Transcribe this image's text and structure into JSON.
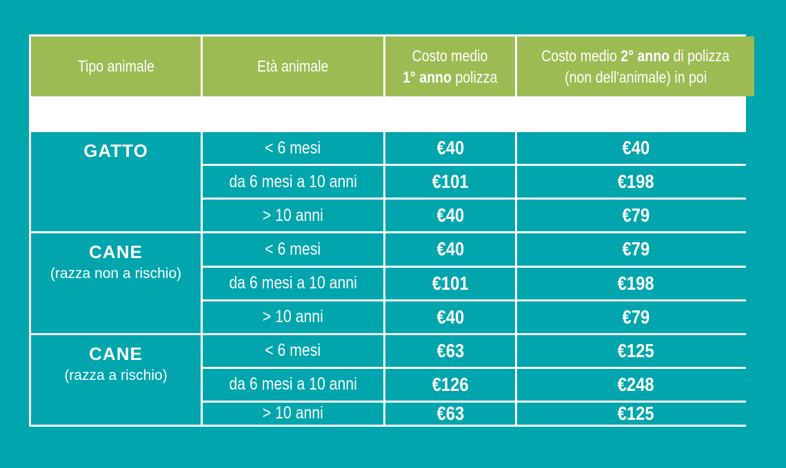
{
  "colors": {
    "background": "#00A5AD",
    "header": "#9CBB53",
    "border": "#FFFFFF"
  },
  "headers": {
    "col1": "Tipo animale",
    "col2": "Età animale",
    "col3_line1": "Costo medio",
    "col3_bold": "1° anno",
    "col3_rest": " polizza",
    "col4_pre": "Costo medio ",
    "col4_bold": "2° anno",
    "col4_post": " di polizza",
    "col4_line2": "(non dell'animale) in poi"
  },
  "groups": [
    {
      "name": "GATTO",
      "sub": "",
      "rows": [
        {
          "age": "< 6 mesi",
          "y1": "€40",
          "y2": "€40"
        },
        {
          "age": "da 6 mesi a 10 anni",
          "y1": "€101",
          "y2": "€198"
        },
        {
          "age": "> 10 anni",
          "y1": "€40",
          "y2": "€79"
        }
      ]
    },
    {
      "name": "CANE",
      "sub": "(razza non a rischio)",
      "rows": [
        {
          "age": "< 6 mesi",
          "y1": "€40",
          "y2": "€79"
        },
        {
          "age": "da 6 mesi a 10 anni",
          "y1": "€101",
          "y2": "€198"
        },
        {
          "age": "> 10 anni",
          "y1": "€40",
          "y2": "€79"
        }
      ]
    },
    {
      "name": "CANE",
      "sub": "(razza a rischio)",
      "rows": [
        {
          "age": "< 6 mesi",
          "y1": "€63",
          "y2": "€125"
        },
        {
          "age": "da 6 mesi a 10 anni",
          "y1": "€126",
          "y2": "€248"
        },
        {
          "age": "> 10 anni",
          "y1": "€63",
          "y2": "€125"
        }
      ]
    }
  ]
}
